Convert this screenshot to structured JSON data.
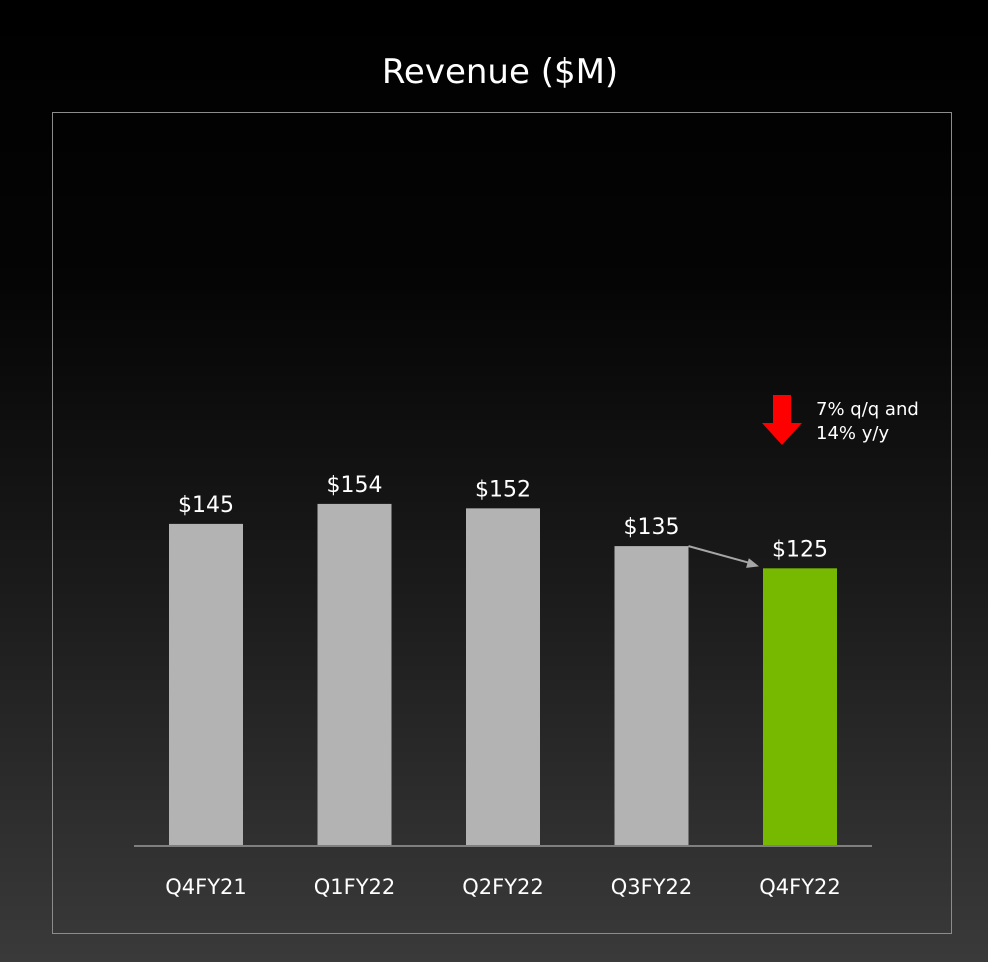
{
  "chart_data": {
    "type": "bar",
    "title": "Revenue ($M)",
    "categories": [
      "Q4FY21",
      "Q1FY22",
      "Q2FY22",
      "Q3FY22",
      "Q4FY22"
    ],
    "values": [
      145,
      154,
      152,
      135,
      125
    ],
    "value_labels": [
      "$145",
      "$154",
      "$152",
      "$135",
      "$125"
    ],
    "ylim": [
      0,
      280
    ],
    "grid": false,
    "colors": {
      "default_bar": "#b3b3b3",
      "highlight_bar": "#76b900",
      "arrow": "#ff0000",
      "connector": "#a6a6a6",
      "baseline": "#7f7f7f"
    },
    "highlight_index": 4,
    "annotation": {
      "lines": [
        "7% q/q and",
        "14% y/y"
      ],
      "icon": "down-arrow-icon"
    }
  }
}
